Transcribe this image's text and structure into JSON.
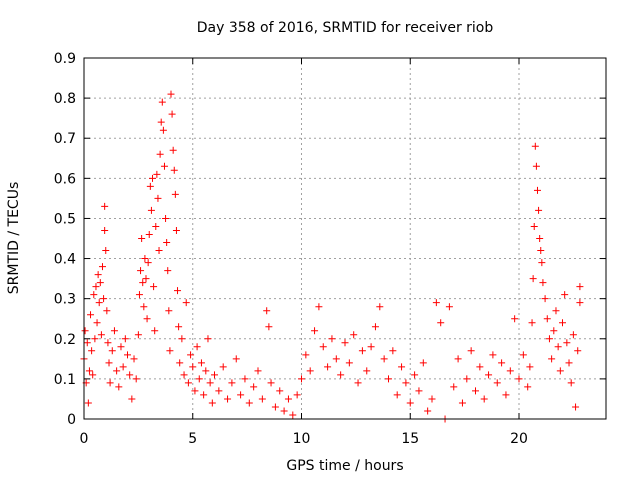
{
  "chart_data": {
    "type": "scatter",
    "title": "Day 358 of 2016, SRMTID for receiver riob",
    "xlabel": "GPS time / hours",
    "ylabel": "SRMTID / TECUs",
    "xlim": [
      0,
      24
    ],
    "ylim": [
      0,
      0.9
    ],
    "xticks": [
      0,
      5,
      10,
      15,
      20
    ],
    "xtick_labels": [
      "0",
      "5",
      "10",
      "15",
      "20"
    ],
    "yticks": [
      0,
      0.1,
      0.2,
      0.3,
      0.4,
      0.5,
      0.6,
      0.7,
      0.8,
      0.9
    ],
    "ytick_labels": [
      "0",
      "0.1",
      "0.2",
      "0.3",
      "0.4",
      "0.5",
      "0.6",
      "0.7",
      "0.8",
      "0.9"
    ],
    "grid": true,
    "marker": "+",
    "color": "#ff0000",
    "series": [
      {
        "name": "SRMTID",
        "points": [
          [
            0.0,
            0.15
          ],
          [
            0.05,
            0.22
          ],
          [
            0.1,
            0.09
          ],
          [
            0.15,
            0.19
          ],
          [
            0.2,
            0.04
          ],
          [
            0.25,
            0.12
          ],
          [
            0.3,
            0.26
          ],
          [
            0.35,
            0.17
          ],
          [
            0.4,
            0.11
          ],
          [
            0.45,
            0.31
          ],
          [
            0.5,
            0.2
          ],
          [
            0.55,
            0.33
          ],
          [
            0.6,
            0.24
          ],
          [
            0.65,
            0.36
          ],
          [
            0.7,
            0.29
          ],
          [
            0.75,
            0.34
          ],
          [
            0.8,
            0.21
          ],
          [
            0.85,
            0.38
          ],
          [
            0.9,
            0.3
          ],
          [
            0.95,
            0.53
          ],
          [
            0.95,
            0.47
          ],
          [
            1.0,
            0.42
          ],
          [
            1.05,
            0.27
          ],
          [
            1.1,
            0.19
          ],
          [
            1.15,
            0.14
          ],
          [
            1.2,
            0.09
          ],
          [
            1.3,
            0.17
          ],
          [
            1.4,
            0.22
          ],
          [
            1.5,
            0.12
          ],
          [
            1.6,
            0.08
          ],
          [
            1.7,
            0.18
          ],
          [
            1.8,
            0.13
          ],
          [
            1.9,
            0.2
          ],
          [
            2.0,
            0.16
          ],
          [
            2.1,
            0.11
          ],
          [
            2.2,
            0.05
          ],
          [
            2.3,
            0.15
          ],
          [
            2.4,
            0.1
          ],
          [
            2.5,
            0.21
          ],
          [
            2.55,
            0.31
          ],
          [
            2.6,
            0.37
          ],
          [
            2.65,
            0.45
          ],
          [
            2.7,
            0.34
          ],
          [
            2.75,
            0.28
          ],
          [
            2.8,
            0.4
          ],
          [
            2.85,
            0.35
          ],
          [
            2.9,
            0.25
          ],
          [
            2.95,
            0.39
          ],
          [
            3.0,
            0.46
          ],
          [
            3.05,
            0.58
          ],
          [
            3.1,
            0.52
          ],
          [
            3.15,
            0.6
          ],
          [
            3.2,
            0.33
          ],
          [
            3.25,
            0.22
          ],
          [
            3.3,
            0.48
          ],
          [
            3.35,
            0.61
          ],
          [
            3.4,
            0.55
          ],
          [
            3.45,
            0.42
          ],
          [
            3.5,
            0.66
          ],
          [
            3.55,
            0.74
          ],
          [
            3.6,
            0.79
          ],
          [
            3.65,
            0.72
          ],
          [
            3.7,
            0.63
          ],
          [
            3.75,
            0.5
          ],
          [
            3.8,
            0.44
          ],
          [
            3.85,
            0.37
          ],
          [
            3.9,
            0.27
          ],
          [
            3.95,
            0.17
          ],
          [
            4.0,
            0.81
          ],
          [
            4.05,
            0.76
          ],
          [
            4.1,
            0.67
          ],
          [
            4.15,
            0.62
          ],
          [
            4.2,
            0.56
          ],
          [
            4.25,
            0.47
          ],
          [
            4.3,
            0.32
          ],
          [
            4.35,
            0.23
          ],
          [
            4.4,
            0.14
          ],
          [
            4.5,
            0.2
          ],
          [
            4.6,
            0.11
          ],
          [
            4.7,
            0.29
          ],
          [
            4.8,
            0.09
          ],
          [
            4.9,
            0.16
          ],
          [
            5.0,
            0.13
          ],
          [
            5.1,
            0.07
          ],
          [
            5.2,
            0.18
          ],
          [
            5.3,
            0.1
          ],
          [
            5.4,
            0.14
          ],
          [
            5.5,
            0.06
          ],
          [
            5.6,
            0.12
          ],
          [
            5.7,
            0.2
          ],
          [
            5.8,
            0.09
          ],
          [
            5.9,
            0.04
          ],
          [
            6.0,
            0.11
          ],
          [
            6.2,
            0.07
          ],
          [
            6.4,
            0.13
          ],
          [
            6.6,
            0.05
          ],
          [
            6.8,
            0.09
          ],
          [
            7.0,
            0.15
          ],
          [
            7.2,
            0.06
          ],
          [
            7.4,
            0.1
          ],
          [
            7.6,
            0.04
          ],
          [
            7.8,
            0.08
          ],
          [
            8.0,
            0.12
          ],
          [
            8.2,
            0.05
          ],
          [
            8.4,
            0.27
          ],
          [
            8.5,
            0.23
          ],
          [
            8.6,
            0.09
          ],
          [
            8.8,
            0.03
          ],
          [
            9.0,
            0.07
          ],
          [
            9.2,
            0.02
          ],
          [
            9.4,
            0.05
          ],
          [
            9.6,
            0.01
          ],
          [
            9.8,
            0.06
          ],
          [
            10.0,
            0.1
          ],
          [
            10.2,
            0.16
          ],
          [
            10.4,
            0.12
          ],
          [
            10.6,
            0.22
          ],
          [
            10.8,
            0.28
          ],
          [
            11.0,
            0.18
          ],
          [
            11.2,
            0.13
          ],
          [
            11.4,
            0.2
          ],
          [
            11.6,
            0.15
          ],
          [
            11.8,
            0.11
          ],
          [
            12.0,
            0.19
          ],
          [
            12.2,
            0.14
          ],
          [
            12.4,
            0.21
          ],
          [
            12.6,
            0.09
          ],
          [
            12.8,
            0.17
          ],
          [
            13.0,
            0.12
          ],
          [
            13.2,
            0.18
          ],
          [
            13.4,
            0.23
          ],
          [
            13.6,
            0.28
          ],
          [
            13.8,
            0.15
          ],
          [
            14.0,
            0.1
          ],
          [
            14.2,
            0.17
          ],
          [
            14.4,
            0.06
          ],
          [
            14.6,
            0.13
          ],
          [
            14.8,
            0.09
          ],
          [
            15.0,
            0.04
          ],
          [
            15.2,
            0.11
          ],
          [
            15.4,
            0.07
          ],
          [
            15.6,
            0.14
          ],
          [
            15.8,
            0.02
          ],
          [
            16.0,
            0.05
          ],
          [
            16.2,
            0.29
          ],
          [
            16.4,
            0.24
          ],
          [
            16.6,
            0.0
          ],
          [
            16.8,
            0.28
          ],
          [
            17.0,
            0.08
          ],
          [
            17.2,
            0.15
          ],
          [
            17.4,
            0.04
          ],
          [
            17.6,
            0.1
          ],
          [
            17.8,
            0.17
          ],
          [
            18.0,
            0.07
          ],
          [
            18.2,
            0.13
          ],
          [
            18.4,
            0.05
          ],
          [
            18.6,
            0.11
          ],
          [
            18.8,
            0.16
          ],
          [
            19.0,
            0.09
          ],
          [
            19.2,
            0.14
          ],
          [
            19.4,
            0.06
          ],
          [
            19.6,
            0.12
          ],
          [
            19.8,
            0.25
          ],
          [
            20.0,
            0.1
          ],
          [
            20.2,
            0.16
          ],
          [
            20.4,
            0.08
          ],
          [
            20.5,
            0.13
          ],
          [
            20.6,
            0.24
          ],
          [
            20.65,
            0.35
          ],
          [
            20.7,
            0.48
          ],
          [
            20.75,
            0.68
          ],
          [
            20.8,
            0.63
          ],
          [
            20.85,
            0.57
          ],
          [
            20.9,
            0.52
          ],
          [
            20.95,
            0.45
          ],
          [
            21.0,
            0.42
          ],
          [
            21.05,
            0.39
          ],
          [
            21.1,
            0.34
          ],
          [
            21.2,
            0.3
          ],
          [
            21.3,
            0.25
          ],
          [
            21.4,
            0.2
          ],
          [
            21.5,
            0.15
          ],
          [
            21.6,
            0.22
          ],
          [
            21.7,
            0.27
          ],
          [
            21.8,
            0.18
          ],
          [
            21.9,
            0.12
          ],
          [
            22.0,
            0.24
          ],
          [
            22.1,
            0.31
          ],
          [
            22.2,
            0.19
          ],
          [
            22.3,
            0.14
          ],
          [
            22.4,
            0.09
          ],
          [
            22.5,
            0.21
          ],
          [
            22.6,
            0.03
          ],
          [
            22.7,
            0.17
          ],
          [
            22.8,
            0.29
          ],
          [
            22.8,
            0.33
          ]
        ]
      }
    ]
  }
}
